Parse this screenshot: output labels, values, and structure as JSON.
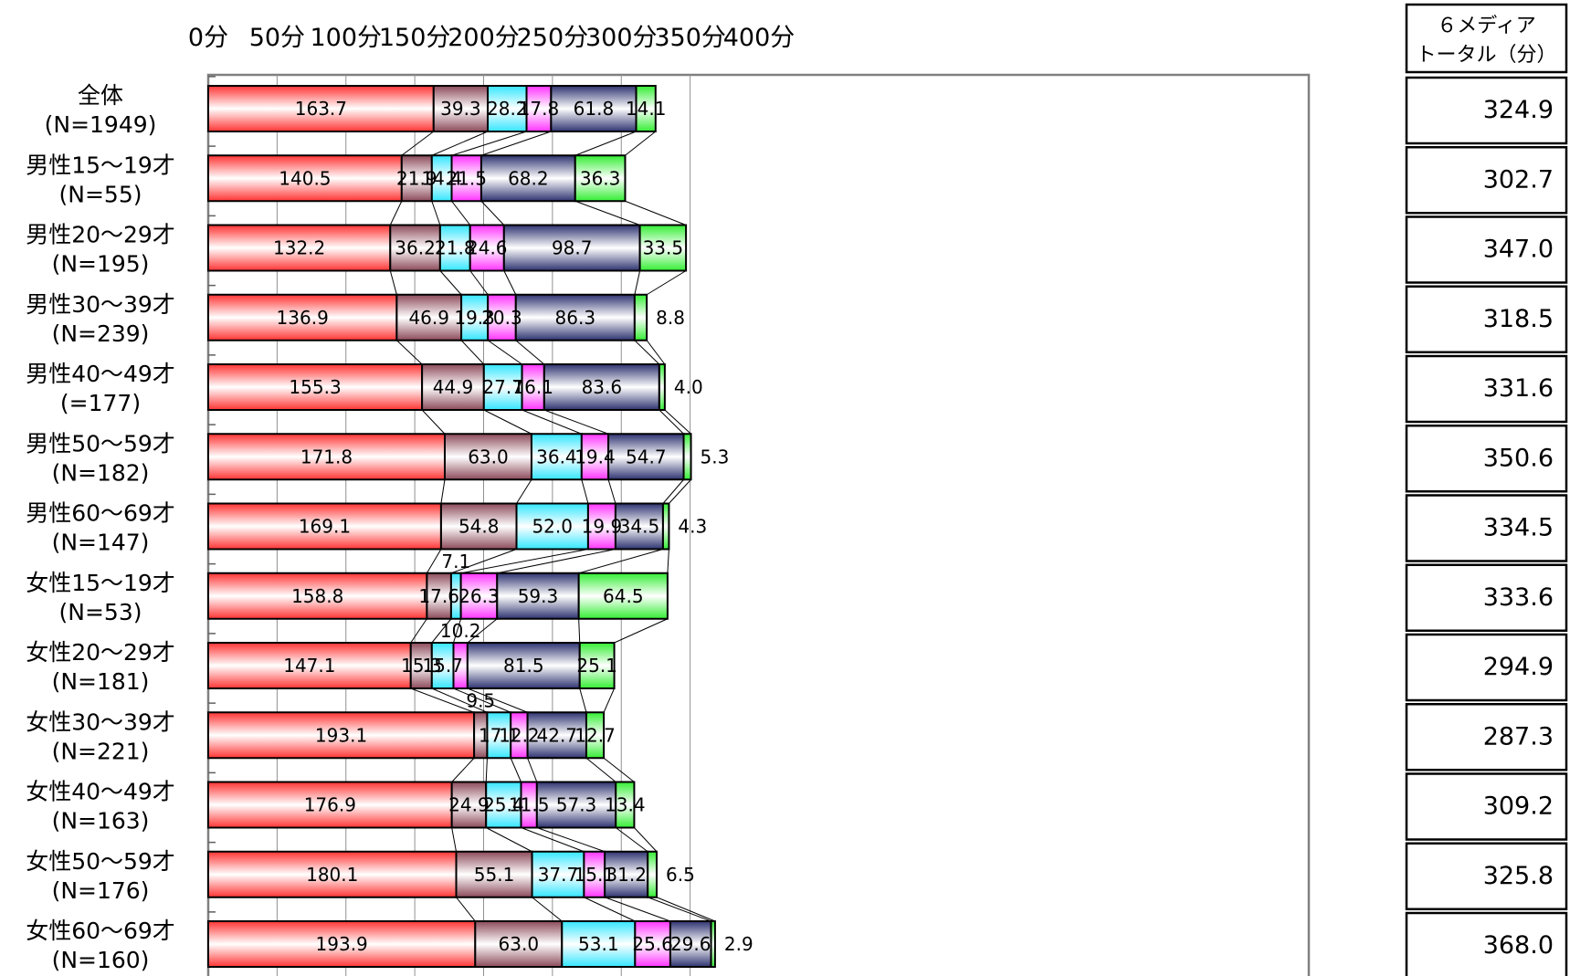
{
  "chart_data": {
    "type": "bar",
    "orientation": "horizontal",
    "stacked": true,
    "title": "",
    "xlabel": "",
    "ylabel": "",
    "xlim": [
      0,
      400
    ],
    "x_ticks": [
      0,
      50,
      100,
      150,
      200,
      250,
      300,
      350,
      400
    ],
    "x_tick_labels": [
      "0分",
      "50分",
      "100分",
      "150分",
      "200分",
      "250分",
      "300分",
      "350分",
      "400分"
    ],
    "grid": true,
    "legend": "none",
    "categories": [
      {
        "name": "全体",
        "n": "(N=1949)"
      },
      {
        "name": "男性15～19才",
        "n": "(N=55)"
      },
      {
        "name": "男性20～29才",
        "n": "(N=195)"
      },
      {
        "name": "男性30～39才",
        "n": "(N=239)"
      },
      {
        "name": "男性40～49才",
        "n": "(=177)"
      },
      {
        "name": "男性50～59才",
        "n": "(N=182)"
      },
      {
        "name": "男性60～69才",
        "n": "(N=147)"
      },
      {
        "name": "女性15～19才",
        "n": "(N=53)"
      },
      {
        "name": "女性20～29才",
        "n": "(N=181)"
      },
      {
        "name": "女性30～39才",
        "n": "(N=221)"
      },
      {
        "name": "女性40～49才",
        "n": "(N=163)"
      },
      {
        "name": "女性50～59才",
        "n": "(N=176)"
      },
      {
        "name": "女性60～69才",
        "n": "(N=160)"
      }
    ],
    "series": [
      {
        "color": "#ff3333",
        "values": [
          163.7,
          140.5,
          132.2,
          136.9,
          155.3,
          171.8,
          169.1,
          158.8,
          147.1,
          193.1,
          176.9,
          180.1,
          193.9
        ]
      },
      {
        "color": "#8c4a5a",
        "values": [
          39.3,
          21.9,
          36.2,
          46.9,
          44.9,
          63.0,
          54.8,
          17.6,
          15.3,
          9.5,
          24.9,
          55.1,
          63.0
        ]
      },
      {
        "color": "#33e6ff",
        "values": [
          28.2,
          14.4,
          21.8,
          19.3,
          27.7,
          36.4,
          52.0,
          7.1,
          15.7,
          17.1,
          25.4,
          37.7,
          53.1
        ]
      },
      {
        "color": "#ff33ff",
        "values": [
          17.8,
          21.5,
          24.6,
          20.3,
          16.1,
          19.4,
          19.9,
          26.3,
          10.2,
          12.2,
          11.5,
          15.1,
          25.6
        ]
      },
      {
        "color": "#2e3370",
        "values": [
          61.8,
          68.2,
          98.7,
          86.3,
          83.6,
          54.7,
          34.5,
          59.3,
          81.5,
          42.7,
          57.3,
          31.2,
          29.6
        ]
      },
      {
        "color": "#33ee33",
        "values": [
          14.1,
          36.3,
          33.5,
          8.8,
          4.0,
          5.3,
          4.3,
          64.5,
          25.1,
          12.7,
          13.4,
          6.5,
          2.9
        ]
      }
    ],
    "total_header": [
      "６メディア",
      "トータル（分）"
    ],
    "totals": [
      "324.9",
      "302.7",
      "347.0",
      "318.5",
      "331.6",
      "350.6",
      "334.5",
      "333.6",
      "294.9",
      "287.3",
      "309.2",
      "325.8",
      "368.0"
    ]
  }
}
